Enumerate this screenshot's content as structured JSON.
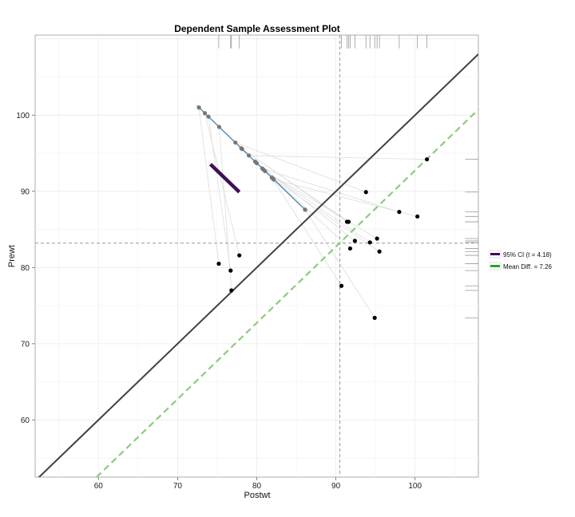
{
  "chart_data": {
    "type": "scatter",
    "title": "Dependent Sample Assessment Plot",
    "xlabel": "Postwt",
    "ylabel": "Prewt",
    "xlim": [
      52,
      108
    ],
    "ylim": [
      52.5,
      110.5
    ],
    "xticks": [
      60,
      70,
      80,
      90,
      100
    ],
    "yticks": [
      60,
      70,
      80,
      90,
      100
    ],
    "grid": true,
    "legend_position": "right",
    "legend": [
      {
        "label": "95% CI (t = 4.18)",
        "color": "#3f0f56"
      },
      {
        "label": "Mean Diff. = 7.26",
        "color": "#2ca02c"
      }
    ],
    "mean_postwt": 90.5,
    "mean_prewt": 83.2,
    "mean_diff": 7.26,
    "ci_diff": [
      3.6,
      10.9
    ],
    "points": [
      {
        "x": 75.2,
        "y": 80.5
      },
      {
        "x": 77.8,
        "y": 81.6
      },
      {
        "x": 76.7,
        "y": 79.6
      },
      {
        "x": 76.8,
        "y": 77.0
      },
      {
        "x": 90.7,
        "y": 77.6
      },
      {
        "x": 93.8,
        "y": 89.9
      },
      {
        "x": 101.5,
        "y": 94.2
      },
      {
        "x": 91.4,
        "y": 86.0
      },
      {
        "x": 91.6,
        "y": 86.0
      },
      {
        "x": 98.0,
        "y": 87.3
      },
      {
        "x": 100.3,
        "y": 86.7
      },
      {
        "x": 92.4,
        "y": 83.5
      },
      {
        "x": 94.3,
        "y": 83.3
      },
      {
        "x": 95.2,
        "y": 83.8
      },
      {
        "x": 91.8,
        "y": 82.5
      },
      {
        "x": 95.5,
        "y": 82.1
      },
      {
        "x": 94.9,
        "y": 73.4
      }
    ]
  },
  "colors": {
    "identity_line": "#404040",
    "mean_diff_line": "#8ccb7e",
    "projection_axis": "#4a84b0",
    "ci_bar": "#3f0f56",
    "mean_ref_lines": "#999999",
    "projection_points": "#777777",
    "points": "#000000",
    "segments": "#dddddd",
    "rug": "#9a9a9a"
  }
}
